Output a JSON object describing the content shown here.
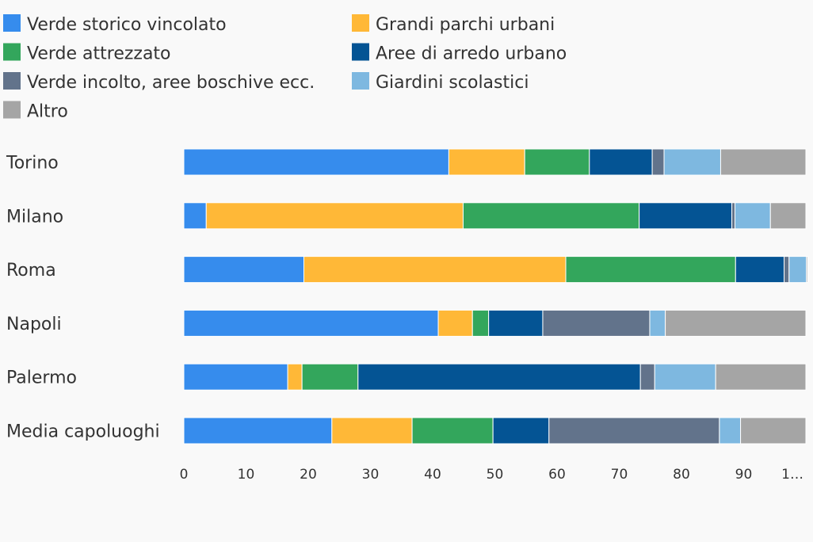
{
  "chart_data": {
    "type": "bar",
    "orientation": "horizontal",
    "stacked": true,
    "categories": [
      "Torino",
      "Milano",
      "Roma",
      "Napoli",
      "Palermo",
      "Media capoluoghi"
    ],
    "series": [
      {
        "name": "Verde storico vincolato",
        "color": "#368ced",
        "values": [
          42.6,
          3.6,
          19.3,
          40.9,
          16.7,
          23.8
        ]
      },
      {
        "name": "Grandi parchi urbani",
        "color": "#ffb837",
        "values": [
          12.2,
          41.3,
          42.1,
          5.5,
          2.3,
          12.9
        ]
      },
      {
        "name": "Verde attrezzato",
        "color": "#33a65c",
        "values": [
          10.4,
          28.3,
          27.3,
          2.6,
          9.0,
          13.0
        ]
      },
      {
        "name": "Aree di arredo urbano",
        "color": "#045494",
        "values": [
          10.1,
          14.9,
          7.8,
          8.7,
          45.4,
          9.0
        ]
      },
      {
        "name": "Verde incolto, aree boschive ecc.",
        "color": "#62738b",
        "values": [
          1.9,
          0.5,
          0.8,
          17.2,
          2.3,
          27.4
        ]
      },
      {
        "name": "Giardini scolastici",
        "color": "#7eb8e0",
        "values": [
          9.1,
          5.7,
          2.8,
          2.5,
          9.8,
          3.4
        ]
      },
      {
        "name": "Altro",
        "color": "#a5a5a5",
        "values": [
          13.7,
          5.7,
          0.2,
          22.6,
          14.5,
          10.5
        ]
      }
    ],
    "xlim": [
      0,
      100
    ],
    "xticks": [
      "0",
      "10",
      "20",
      "30",
      "40",
      "50",
      "60",
      "70",
      "80",
      "90",
      "1…"
    ],
    "grid": false,
    "legend_position": "top"
  }
}
